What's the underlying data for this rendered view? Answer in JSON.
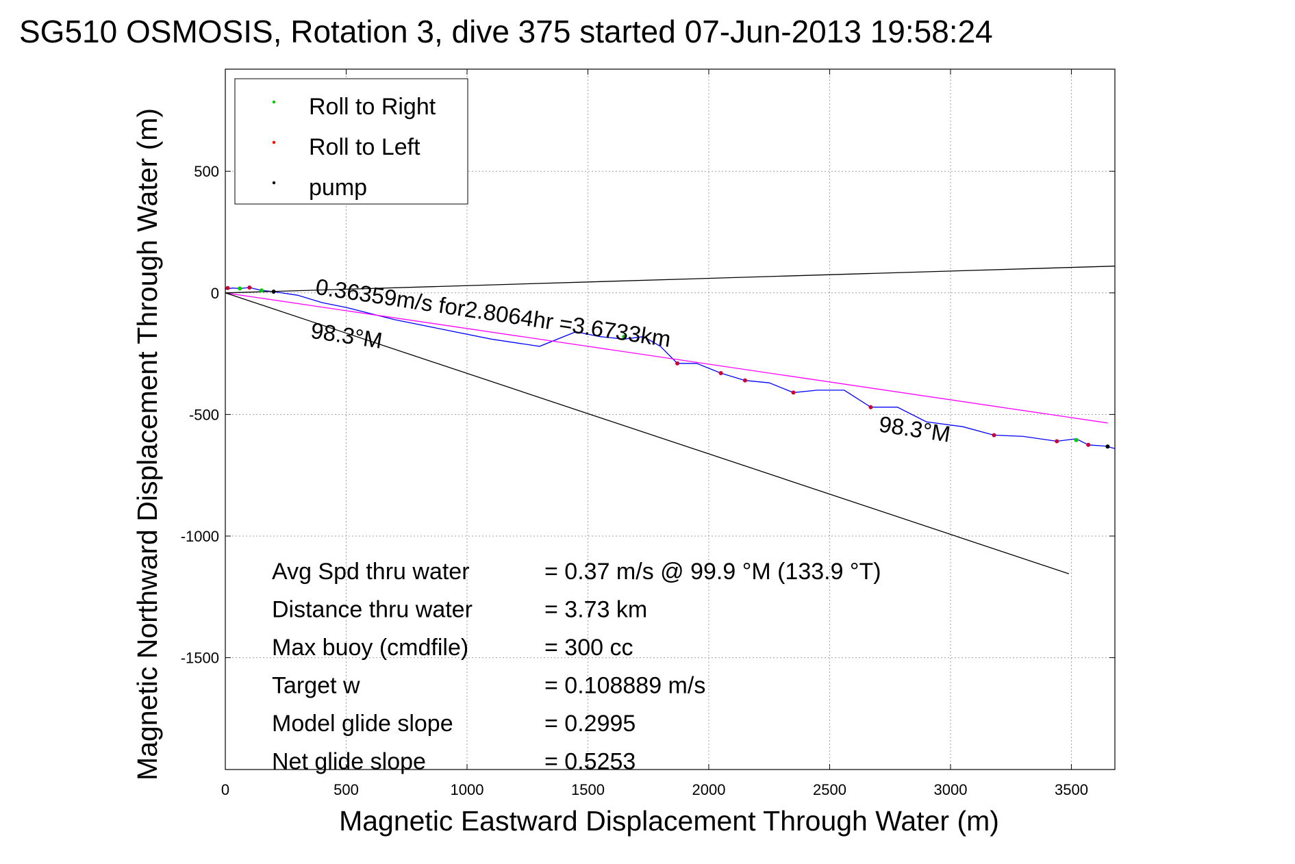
{
  "chart_data": {
    "type": "line",
    "title": "SG510 OSMOSIS, Rotation 3, dive 375 started 07-Jun-2013 19:58:24",
    "xlabel": "Magnetic Eastward Displacement Through Water (m)",
    "ylabel": "Magnetic Northward Displacement Through Water (m)",
    "xlim": [
      0,
      3680
    ],
    "ylim": [
      -1960,
      920
    ],
    "xticks": [
      0,
      500,
      1000,
      1500,
      2000,
      2500,
      3000,
      3500
    ],
    "yticks": [
      500,
      0,
      -500,
      -1000,
      -1500
    ],
    "grid": true,
    "legend": {
      "placement": "top-left",
      "entries": [
        {
          "label": "Roll to Right",
          "color": "#00cc00"
        },
        {
          "label": "Roll to Left",
          "color": "#ff0000"
        },
        {
          "label": "pump",
          "color": "#000000"
        }
      ]
    },
    "series": [
      {
        "color": "#0000ff",
        "x": [
          0,
          30,
          60,
          100,
          150,
          200,
          300,
          400,
          500,
          700,
          900,
          1100,
          1300,
          1450,
          1550,
          1650,
          1730,
          1800,
          1870,
          1950,
          2050,
          2150,
          2250,
          2350,
          2450,
          2560,
          2670,
          2780,
          2900,
          3050,
          3180,
          3300,
          3440,
          3520,
          3570,
          3640,
          3680
        ],
        "y": [
          15,
          20,
          18,
          22,
          10,
          5,
          -10,
          -40,
          -60,
          -110,
          -150,
          -190,
          -220,
          -160,
          -180,
          -190,
          -180,
          -220,
          -290,
          -290,
          -330,
          -360,
          -370,
          -410,
          -400,
          -400,
          -470,
          -470,
          -530,
          -550,
          -585,
          -590,
          -610,
          -600,
          -625,
          -630,
          -640
        ]
      },
      {
        "color": "#ff00ff",
        "x": [
          0,
          3650
        ],
        "y": [
          0,
          -535
        ]
      },
      {
        "color": "#000000",
        "x": [
          0,
          3680
        ],
        "y": [
          0,
          110
        ]
      },
      {
        "color": "#000000",
        "x": [
          0,
          3490
        ],
        "y": [
          0,
          -1155
        ]
      }
    ],
    "markers": {
      "roll_right": {
        "color": "#00cc00",
        "x": [
          60,
          150,
          1650,
          3520
        ],
        "y": [
          18,
          10,
          -180,
          -605
        ]
      },
      "roll_left": {
        "color": "#cc0033",
        "x": [
          10,
          100,
          1870,
          2050,
          2150,
          2350,
          2670,
          3180,
          3440,
          3570
        ],
        "y": [
          20,
          22,
          -290,
          -330,
          -360,
          -410,
          -470,
          -585,
          -610,
          -625
        ]
      },
      "pump": {
        "color": "#000000",
        "x": [
          200,
          3650
        ],
        "y": [
          5,
          -632
        ]
      }
    },
    "annotations": [
      {
        "text": "0.36359m/s for2.8064hr =3.6733km",
        "x": 370,
        "y": -5,
        "rotation": 8.5
      },
      {
        "text": "98.3°M",
        "x": 350,
        "y": -185,
        "rotation": 8.5
      },
      {
        "text": "98.3°M",
        "x": 2700,
        "y": -570,
        "rotation": 8.5
      }
    ],
    "stats": [
      {
        "label": "Avg Spd thru water",
        "value": "=  0.37 m/s @  99.9 °M (133.9 °T)"
      },
      {
        "label": "Distance thru water",
        "value": "=  3.73 km"
      },
      {
        "label": "Max buoy (cmdfile)",
        "value": "= 300 cc"
      },
      {
        "label": "Target w",
        "value": "= 0.108889 m/s"
      },
      {
        "label": "Model glide slope",
        "value": "= 0.2995"
      },
      {
        "label": "Net glide slope",
        "value": "= 0.5253"
      }
    ]
  }
}
